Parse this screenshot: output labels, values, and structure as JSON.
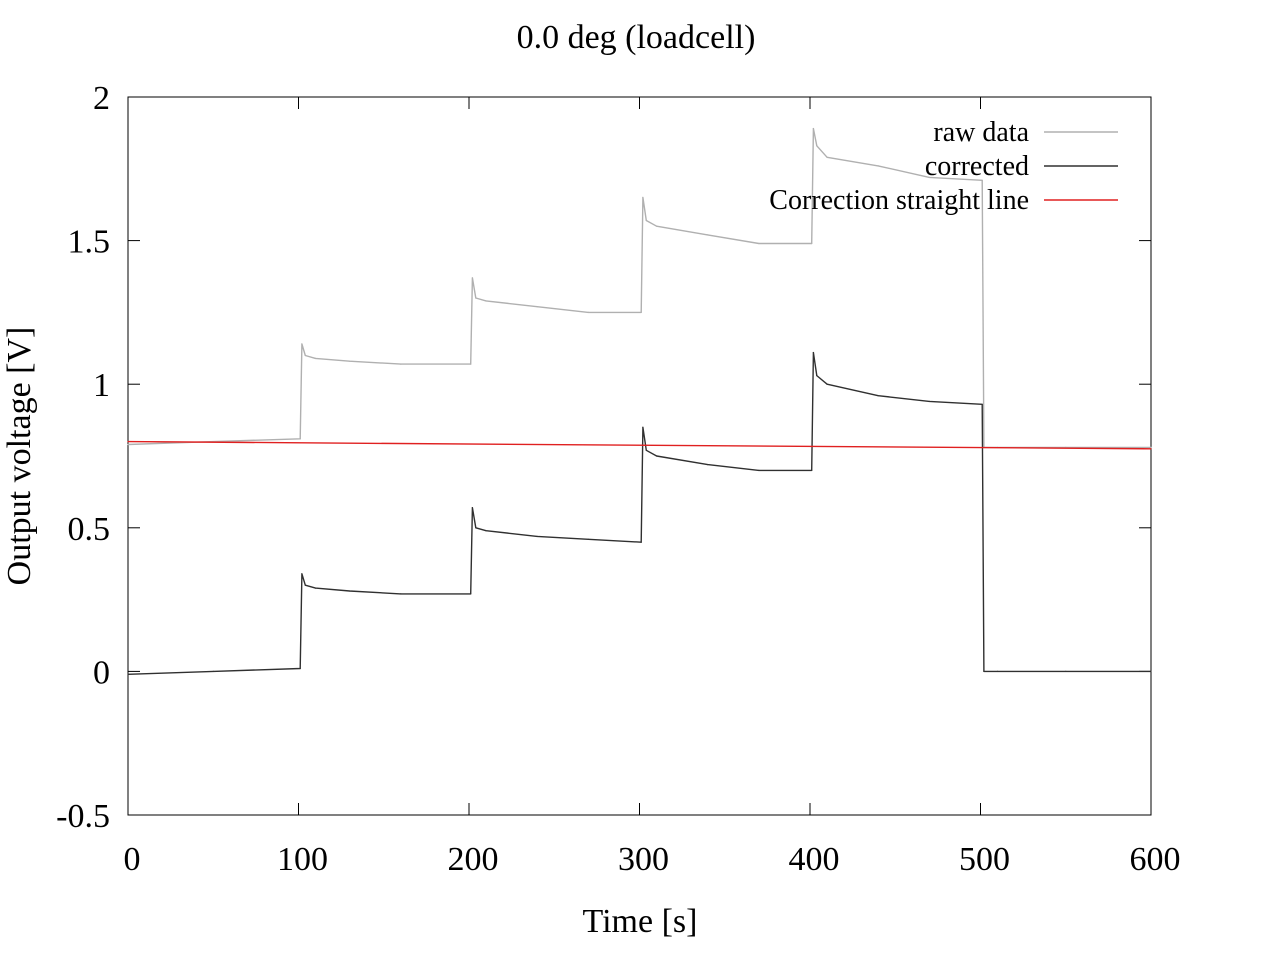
{
  "chart_data": {
    "type": "line",
    "title": "0.0 deg (loadcell)",
    "xlabel": "Time [s]",
    "ylabel": "Output voltage [V]",
    "xlim": [
      0,
      600
    ],
    "ylim": [
      -0.5,
      2
    ],
    "xticks": [
      0,
      100,
      200,
      300,
      400,
      500,
      600
    ],
    "xtick_labels": [
      "0",
      "100",
      "200",
      "300",
      "400",
      "500",
      "600"
    ],
    "yticks": [
      -0.5,
      0,
      0.5,
      1,
      1.5,
      2
    ],
    "ytick_labels": [
      "-0.5",
      "0",
      "0.5",
      "1",
      "1.5",
      "2"
    ],
    "grid": false,
    "legend_position": "top-right",
    "series": [
      {
        "name": "raw data",
        "color": "#b0b0b0",
        "x": [
          0,
          50,
          101,
          102,
          104,
          110,
          130,
          160,
          201,
          202,
          204,
          210,
          240,
          270,
          301,
          302,
          304,
          310,
          340,
          370,
          401,
          402,
          404,
          410,
          440,
          470,
          501,
          502,
          510,
          550,
          600
        ],
        "y": [
          0.79,
          0.8,
          0.81,
          1.14,
          1.1,
          1.09,
          1.08,
          1.07,
          1.07,
          1.37,
          1.3,
          1.29,
          1.27,
          1.25,
          1.25,
          1.65,
          1.57,
          1.55,
          1.52,
          1.49,
          1.49,
          1.89,
          1.83,
          1.79,
          1.76,
          1.72,
          1.71,
          0.78,
          0.78,
          0.78,
          0.78
        ]
      },
      {
        "name": "corrected",
        "color": "#303030",
        "x": [
          0,
          50,
          101,
          102,
          104,
          110,
          130,
          160,
          201,
          202,
          204,
          210,
          240,
          270,
          301,
          302,
          304,
          310,
          340,
          370,
          401,
          402,
          404,
          410,
          440,
          470,
          501,
          502,
          510,
          550,
          600
        ],
        "y": [
          -0.01,
          0.0,
          0.01,
          0.34,
          0.3,
          0.29,
          0.28,
          0.27,
          0.27,
          0.57,
          0.5,
          0.49,
          0.47,
          0.46,
          0.45,
          0.85,
          0.77,
          0.75,
          0.72,
          0.7,
          0.7,
          1.11,
          1.03,
          1.0,
          0.96,
          0.94,
          0.93,
          0.0,
          0.0,
          0.0,
          0.0
        ]
      },
      {
        "name": "Correction straight line",
        "color": "#e02020",
        "x": [
          0,
          600
        ],
        "y": [
          0.8,
          0.775
        ]
      }
    ]
  }
}
